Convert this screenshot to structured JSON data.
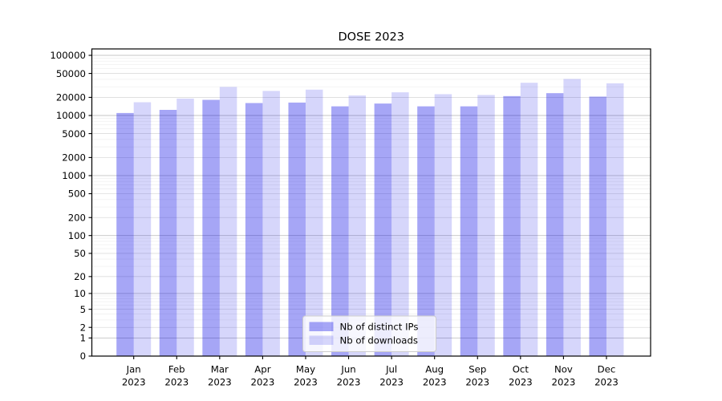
{
  "figure": {
    "background": "#ffffff"
  },
  "chart_data": {
    "type": "bar",
    "title": "DOSE 2023",
    "categories": [
      "Jan",
      "Feb",
      "Mar",
      "Apr",
      "May",
      "Jun",
      "Jul",
      "Aug",
      "Sep",
      "Oct",
      "Nov",
      "Dec"
    ],
    "category_year": "2023",
    "series": [
      {
        "name": "Nb of distinct IPs",
        "values": [
          11000,
          12400,
          18200,
          16100,
          16400,
          14200,
          15800,
          14200,
          14200,
          21000,
          23500,
          20600
        ]
      },
      {
        "name": "Nb of downloads",
        "values": [
          16600,
          19100,
          29800,
          25600,
          26900,
          21500,
          24300,
          22600,
          21900,
          35000,
          40500,
          34300
        ]
      }
    ],
    "xlabel": "",
    "ylabel": "",
    "yscale": "log1p",
    "ylim": [
      0,
      128000
    ],
    "yticks": [
      0,
      1,
      2,
      5,
      10,
      20,
      50,
      100,
      200,
      500,
      1000,
      2000,
      5000,
      10000,
      20000,
      50000,
      100000
    ],
    "grid": true,
    "legend": {
      "location": "lower center",
      "entries": [
        "Nb of distinct IPs",
        "Nb of downloads"
      ]
    },
    "colors": {
      "bar_base": "#0000e6",
      "ip_alpha": 0.35,
      "dl_alpha": 0.16,
      "grid_major": "#c4c4c4",
      "grid_mid": "#dcdcdc",
      "grid_minor": "#f0f0f0",
      "axis": "#000000",
      "legend_border": "#cccccc",
      "text": "#000000"
    }
  }
}
